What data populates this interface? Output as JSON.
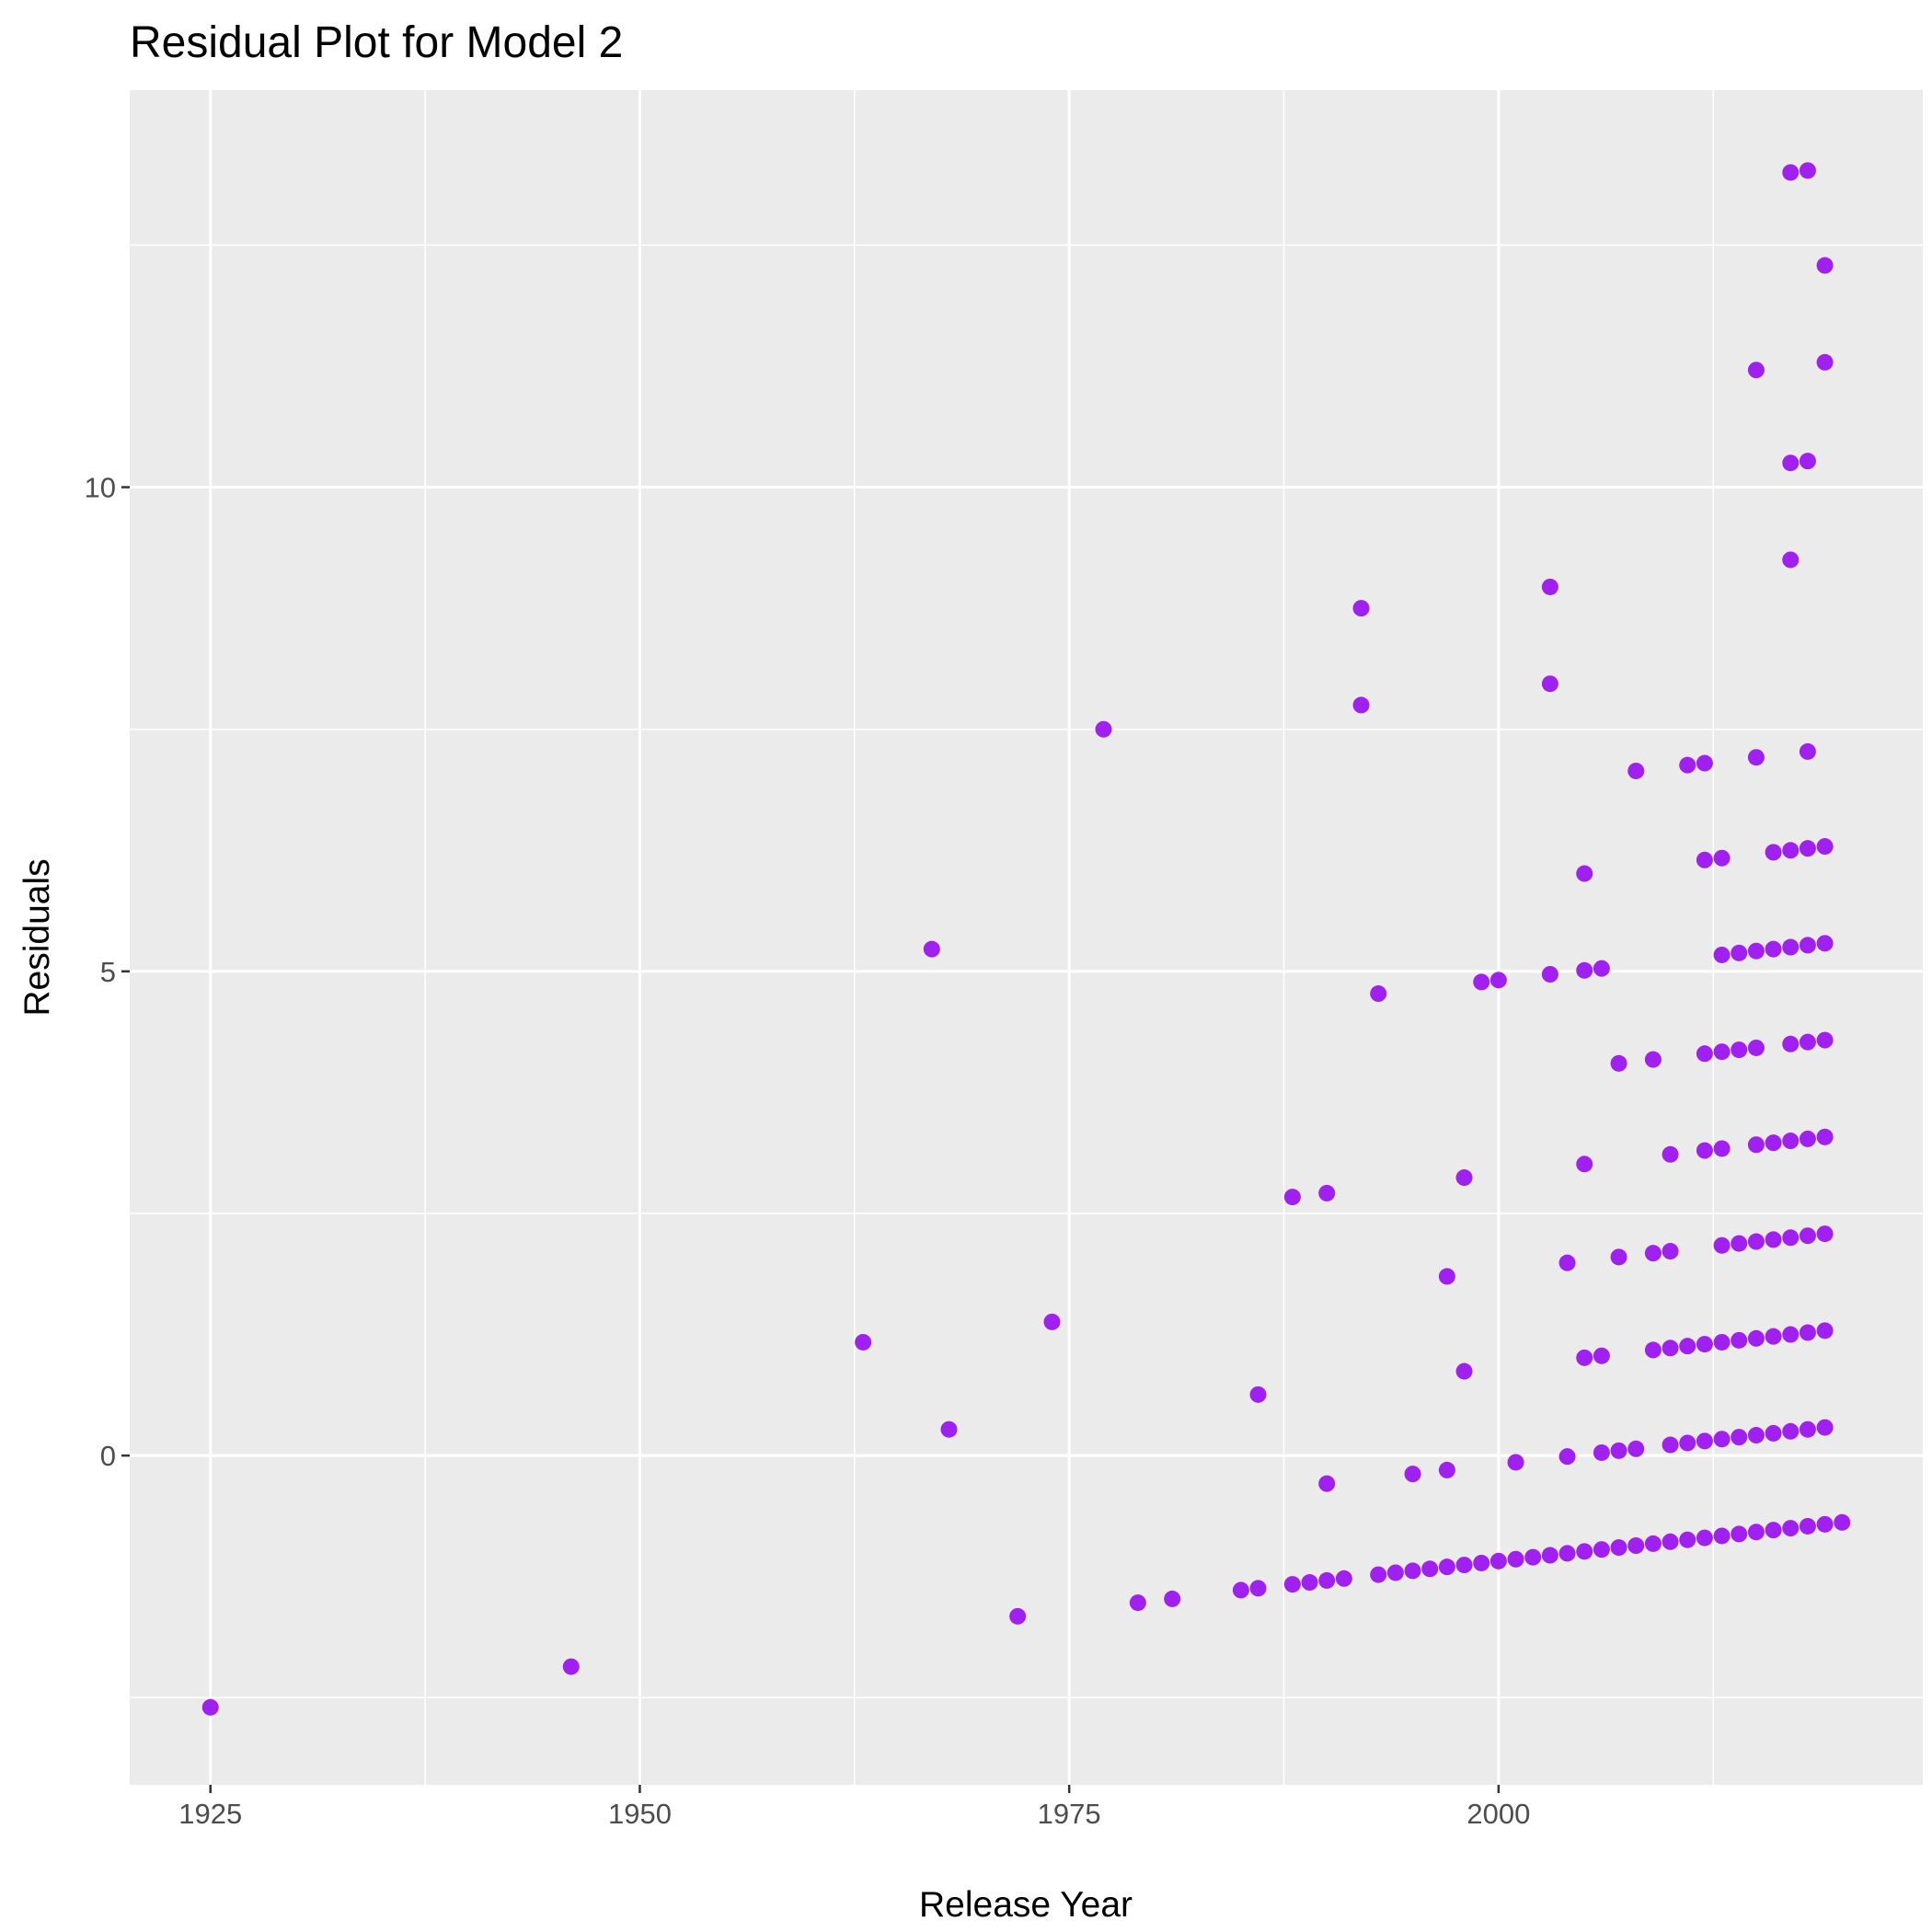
{
  "chart_data": {
    "type": "scatter",
    "title": "Residual Plot for Model 2",
    "xlabel": "Release Year",
    "ylabel": "Residuals",
    "xlim": [
      1920.3,
      2024.7
    ],
    "ylim": [
      -3.4,
      14.1
    ],
    "x_ticks": [
      1925,
      1950,
      1975,
      2000
    ],
    "x_tick_labels": [
      "1925",
      "1950",
      "1975",
      "2000"
    ],
    "y_ticks": [
      0,
      5,
      10
    ],
    "y_tick_labels": [
      "0",
      "5",
      "10"
    ],
    "x_minor_breaks": [
      1937.5,
      1962.5,
      1987.5,
      2012.5
    ],
    "y_minor_breaks": [
      -2.5,
      2.5,
      7.5,
      12.5
    ],
    "grid": true,
    "colors": {
      "panel": "#ebebeb",
      "grid": "#ffffff",
      "point": "#a020f0",
      "tick": "#333333"
    },
    "series": [
      {
        "points": [
          [
            1925,
            -2.6
          ],
          [
            1946,
            -2.18
          ],
          [
            1963,
            1.17
          ],
          [
            1967,
            5.23
          ],
          [
            1968,
            0.27
          ],
          [
            1972,
            -1.66
          ],
          [
            1974,
            1.38
          ],
          [
            1977,
            7.5
          ],
          [
            1979,
            -1.52
          ],
          [
            1981,
            -1.48
          ],
          [
            1985,
            -1.39
          ],
          [
            1986,
            -1.37
          ],
          [
            1986,
            0.63
          ],
          [
            1988,
            -1.33
          ],
          [
            1988,
            2.67
          ],
          [
            1989,
            -1.31
          ],
          [
            1990,
            -1.29
          ],
          [
            1990,
            -0.29
          ],
          [
            1990,
            2.71
          ],
          [
            1991,
            -1.27
          ],
          [
            1992,
            7.75
          ],
          [
            1992,
            8.75
          ],
          [
            1993,
            -1.23
          ],
          [
            1993,
            4.77
          ],
          [
            1994,
            -1.21
          ],
          [
            1995,
            -1.19
          ],
          [
            1995,
            -0.19
          ],
          [
            1996,
            -1.17
          ],
          [
            1997,
            -1.15
          ],
          [
            1997,
            -0.15
          ],
          [
            1997,
            1.85
          ],
          [
            1998,
            -1.13
          ],
          [
            1998,
            0.87
          ],
          [
            1998,
            2.87
          ],
          [
            1999,
            -1.11
          ],
          [
            1999,
            4.89
          ],
          [
            2000,
            -1.09
          ],
          [
            2000,
            4.91
          ],
          [
            2001,
            -1.07
          ],
          [
            2001,
            -0.07
          ],
          [
            2002,
            -1.05
          ],
          [
            2003,
            -1.03
          ],
          [
            2003,
            4.97
          ],
          [
            2003,
            7.97
          ],
          [
            2003,
            8.97
          ],
          [
            2004,
            -1.01
          ],
          [
            2004,
            -0.01
          ],
          [
            2004,
            1.99
          ],
          [
            2005,
            -0.99
          ],
          [
            2005,
            1.01
          ],
          [
            2005,
            3.01
          ],
          [
            2005,
            5.01
          ],
          [
            2005,
            6.01
          ],
          [
            2006,
            -0.97
          ],
          [
            2006,
            0.03
          ],
          [
            2006,
            1.03
          ],
          [
            2006,
            5.03
          ],
          [
            2007,
            -0.95
          ],
          [
            2007,
            0.05
          ],
          [
            2007,
            2.05
          ],
          [
            2007,
            4.05
          ],
          [
            2008,
            -0.93
          ],
          [
            2008,
            0.07
          ],
          [
            2008,
            7.07
          ],
          [
            2009,
            -0.91
          ],
          [
            2009,
            1.09
          ],
          [
            2009,
            2.09
          ],
          [
            2009,
            4.09
          ],
          [
            2010,
            -0.89
          ],
          [
            2010,
            0.11
          ],
          [
            2010,
            1.11
          ],
          [
            2010,
            2.11
          ],
          [
            2010,
            3.11
          ],
          [
            2011,
            -0.87
          ],
          [
            2011,
            0.13
          ],
          [
            2011,
            1.13
          ],
          [
            2011,
            7.13
          ],
          [
            2012,
            -0.85
          ],
          [
            2012,
            0.15
          ],
          [
            2012,
            1.15
          ],
          [
            2012,
            3.15
          ],
          [
            2012,
            4.15
          ],
          [
            2012,
            6.15
          ],
          [
            2012,
            7.15
          ],
          [
            2013,
            -0.83
          ],
          [
            2013,
            0.17
          ],
          [
            2013,
            1.17
          ],
          [
            2013,
            2.17
          ],
          [
            2013,
            3.17
          ],
          [
            2013,
            4.17
          ],
          [
            2013,
            5.17
          ],
          [
            2013,
            6.17
          ],
          [
            2014,
            -0.81
          ],
          [
            2014,
            0.19
          ],
          [
            2014,
            1.19
          ],
          [
            2014,
            2.19
          ],
          [
            2014,
            4.19
          ],
          [
            2014,
            5.19
          ],
          [
            2015,
            -0.79
          ],
          [
            2015,
            0.21
          ],
          [
            2015,
            1.21
          ],
          [
            2015,
            2.21
          ],
          [
            2015,
            3.21
          ],
          [
            2015,
            4.21
          ],
          [
            2015,
            5.21
          ],
          [
            2015,
            7.21
          ],
          [
            2015,
            11.21
          ],
          [
            2016,
            -0.77
          ],
          [
            2016,
            0.23
          ],
          [
            2016,
            1.23
          ],
          [
            2016,
            2.23
          ],
          [
            2016,
            3.23
          ],
          [
            2016,
            5.23
          ],
          [
            2016,
            6.23
          ],
          [
            2017,
            -0.75
          ],
          [
            2017,
            0.25
          ],
          [
            2017,
            1.25
          ],
          [
            2017,
            2.25
          ],
          [
            2017,
            3.25
          ],
          [
            2017,
            4.25
          ],
          [
            2017,
            5.25
          ],
          [
            2017,
            6.25
          ],
          [
            2017,
            9.25
          ],
          [
            2017,
            10.25
          ],
          [
            2017,
            13.25
          ],
          [
            2018,
            -0.73
          ],
          [
            2018,
            0.27
          ],
          [
            2018,
            1.27
          ],
          [
            2018,
            2.27
          ],
          [
            2018,
            3.27
          ],
          [
            2018,
            4.27
          ],
          [
            2018,
            5.27
          ],
          [
            2018,
            6.27
          ],
          [
            2018,
            7.27
          ],
          [
            2018,
            10.27
          ],
          [
            2018,
            13.27
          ],
          [
            2019,
            -0.71
          ],
          [
            2019,
            0.29
          ],
          [
            2019,
            1.29
          ],
          [
            2019,
            2.29
          ],
          [
            2019,
            3.29
          ],
          [
            2019,
            4.29
          ],
          [
            2019,
            5.29
          ],
          [
            2019,
            6.29
          ],
          [
            2019,
            11.29
          ],
          [
            2019,
            12.29
          ],
          [
            2020,
            -0.69
          ]
        ]
      }
    ]
  }
}
